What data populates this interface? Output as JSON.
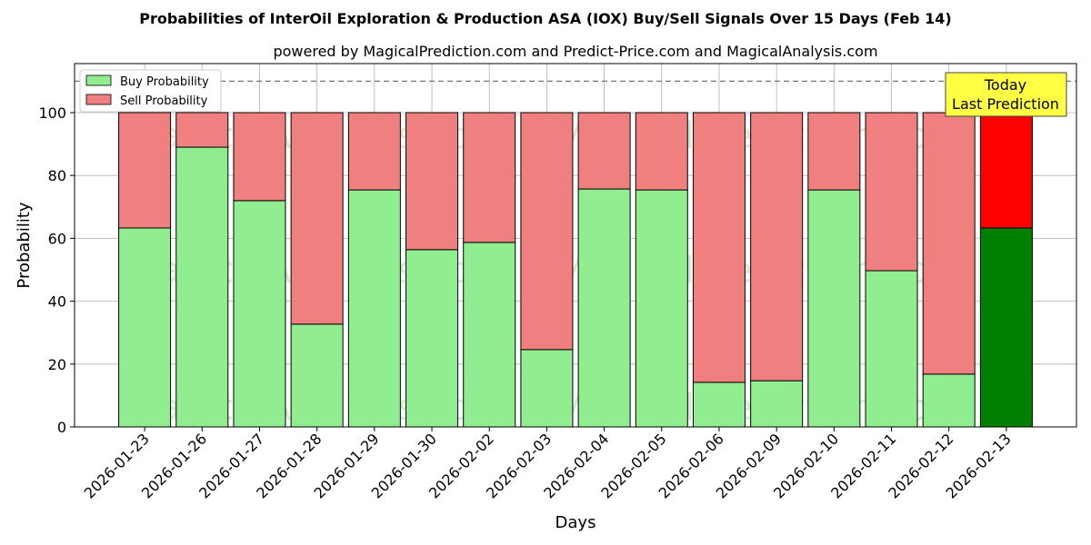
{
  "chart_data": {
    "type": "bar",
    "title": "Probabilities of InterOil Exploration & Production ASA (IOX) Buy/Sell Signals Over 15 Days (Feb 14)",
    "subtitle": "powered by MagicalPrediction.com and Predict-Price.com and MagicalAnalysis.com",
    "xlabel": "Days",
    "ylabel": "Probability",
    "ylim": [
      0,
      115.6
    ],
    "yticks": [
      0,
      20,
      40,
      60,
      80,
      100
    ],
    "categories": [
      "2026-01-23",
      "2026-01-26",
      "2026-01-27",
      "2026-01-28",
      "2026-01-29",
      "2026-01-30",
      "2026-02-02",
      "2026-02-03",
      "2026-02-04",
      "2026-02-05",
      "2026-02-06",
      "2026-02-09",
      "2026-02-10",
      "2026-02-11",
      "2026-02-12",
      "2026-02-13"
    ],
    "series": [
      {
        "name": "Buy Probability",
        "values": [
          63.3,
          89.0,
          72.0,
          32.7,
          75.4,
          56.4,
          58.7,
          24.6,
          75.7,
          75.4,
          14.2,
          14.7,
          75.4,
          49.7,
          16.8,
          63.3
        ],
        "color": "#90ee90",
        "last_color": "#008000"
      },
      {
        "name": "Sell Probability",
        "values": [
          36.7,
          11.0,
          28.0,
          67.3,
          24.6,
          43.6,
          41.3,
          75.4,
          24.3,
          24.6,
          85.8,
          85.3,
          24.6,
          50.3,
          83.2,
          36.7
        ],
        "color": "#f08080",
        "last_color": "#ff0000"
      }
    ],
    "reference_line": 110,
    "grid": true,
    "legend": "top-left",
    "annotation": [
      "Today",
      "Last Prediction"
    ],
    "watermarks": [
      "MagicalAnalysis.com",
      "MagicalPrediction.com"
    ]
  }
}
